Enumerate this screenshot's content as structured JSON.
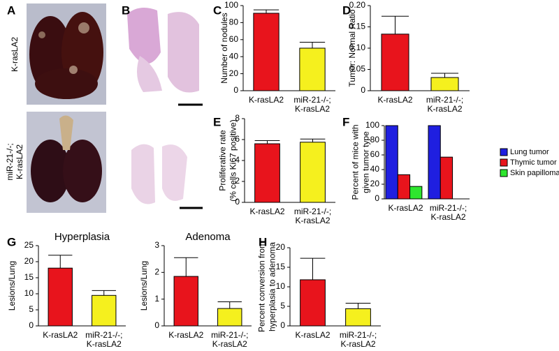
{
  "image_panels": [
    {
      "label": "A",
      "row_labels": [
        [
          "K-rasLA2"
        ],
        [
          "miR-21-/-;",
          "K-rasLA2"
        ]
      ]
    },
    {
      "label": "B"
    }
  ],
  "chart_data": [
    {
      "type": "bar",
      "label": "C",
      "ylabel": [
        "Number of nodules"
      ],
      "categories": [
        "K-rasLA2",
        "miR-21-/-; K-rasLA2"
      ],
      "values": [
        91,
        50
      ],
      "errors": [
        4,
        7
      ],
      "colors": [
        "#e8141c",
        "#f5f01e"
      ],
      "ylim": [
        0,
        100
      ],
      "yticks": [
        0,
        20,
        40,
        60,
        80,
        100
      ]
    },
    {
      "type": "bar",
      "label": "D",
      "ylabel": [
        "Tumor: Normal Ratio"
      ],
      "categories": [
        "K-rasLA2",
        "miR-21-/-; K-rasLA2"
      ],
      "values": [
        0.133,
        0.031
      ],
      "errors": [
        0.042,
        0.01
      ],
      "colors": [
        "#e8141c",
        "#f5f01e"
      ],
      "ylim": [
        0,
        0.2
      ],
      "yticks": [
        0,
        0.05,
        {
          "value": 0.1,
          "label": "0.10"
        },
        0.15,
        {
          "value": 0.2,
          "label": "0.20"
        }
      ]
    },
    {
      "type": "bar",
      "label": "E",
      "ylabel": [
        "Proliferative rate",
        "(% cells Ki67 positive)"
      ],
      "categories": [
        "K-rasLA2",
        "miR-21-/-; K-rasLA2"
      ],
      "values": [
        5.6,
        5.75
      ],
      "errors": [
        0.3,
        0.3
      ],
      "colors": [
        "#e8141c",
        "#f5f01e"
      ],
      "ylim": [
        0,
        8
      ],
      "yticks": [
        0,
        2,
        4,
        6,
        8
      ]
    },
    {
      "type": "grouped_bar",
      "label": "F",
      "ylabel": [
        "Percent of mice with",
        "given tumor type"
      ],
      "categories": [
        "K-rasLA2",
        "miR-21-/-; K-rasLA2"
      ],
      "series": [
        {
          "name": "Lung tumor",
          "color": "#1f1fe0",
          "values": [
            100,
            100
          ]
        },
        {
          "name": "Thymic tumor",
          "color": "#e8141c",
          "values": [
            33,
            57
          ]
        },
        {
          "name": "Skin papilloma",
          "color": "#2ee62e",
          "values": [
            17,
            0
          ]
        }
      ],
      "ylim": [
        0,
        100
      ],
      "yticks": [
        0,
        20,
        40,
        60,
        80,
        100
      ],
      "legend": "right"
    },
    {
      "type": "bar",
      "label": "G",
      "title": "Hyperplasia",
      "ylabel": [
        "Lesions/Lung"
      ],
      "categories": [
        "K-rasLA2",
        "miR-21-/-; K-rasLA2"
      ],
      "values": [
        18,
        9.5
      ],
      "errors": [
        4,
        1.5
      ],
      "colors": [
        "#e8141c",
        "#f5f01e"
      ],
      "ylim": [
        0,
        25
      ],
      "yticks": [
        0,
        5,
        10,
        15,
        20,
        25
      ]
    },
    {
      "type": "bar",
      "title": "Adenoma",
      "ylabel": [
        "Lesions/Lung"
      ],
      "categories": [
        "K-rasLA2",
        "miR-21-/-; K-rasLA2"
      ],
      "values": [
        1.85,
        0.65
      ],
      "errors": [
        0.7,
        0.25
      ],
      "colors": [
        "#e8141c",
        "#f5f01e"
      ],
      "ylim": [
        0,
        3
      ],
      "yticks": [
        0,
        1,
        2,
        3
      ]
    },
    {
      "type": "bar",
      "label": "H",
      "ylabel": [
        "Percent conversion from",
        "hyperplasia to adenoma"
      ],
      "categories": [
        "K-rasLA2",
        "miR-21-/-; K-rasLA2"
      ],
      "values": [
        11.8,
        4.4
      ],
      "errors": [
        5.5,
        1.4
      ],
      "colors": [
        "#e8141c",
        "#f5f01e"
      ],
      "ylim": [
        0,
        20
      ],
      "yticks": [
        0,
        5,
        10,
        15,
        20
      ]
    }
  ]
}
